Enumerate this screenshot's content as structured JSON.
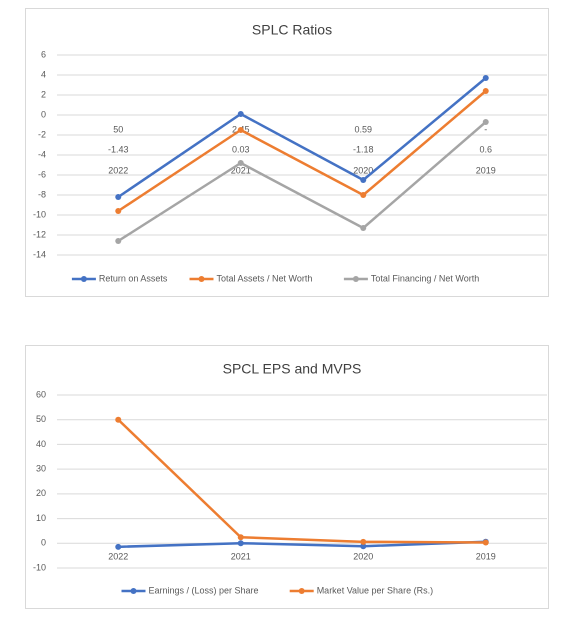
{
  "chart_data": [
    {
      "type": "line",
      "title": "SPLC Ratios",
      "categories": [
        "2022",
        "2021",
        "2020",
        "2019"
      ],
      "category_sublabels": [
        [
          "50",
          "2.45",
          "0.59",
          "-"
        ],
        [
          "-1.43",
          "0.03",
          "-1.18",
          "0.6"
        ]
      ],
      "series": [
        {
          "name": "Return on Assets",
          "color": "#4472c4",
          "values": [
            -8.2,
            0.1,
            -6.5,
            3.7
          ]
        },
        {
          "name": "Total Assets / Net Worth",
          "color": "#ed7d31",
          "values": [
            -9.6,
            -1.5,
            -8,
            2.4
          ]
        },
        {
          "name": "Total Financing / Net Worth",
          "color": "#a5a5a5",
          "values": [
            -12.6,
            -4.8,
            -11.3,
            -0.7
          ]
        }
      ],
      "ylim": [
        -14,
        6
      ],
      "yticks": [
        -14,
        -12,
        -10,
        -8,
        -6,
        -4,
        -2,
        0,
        2,
        4,
        6
      ],
      "grid": true,
      "legend": "bottom"
    },
    {
      "type": "line",
      "title": "SPCL EPS and MVPS",
      "categories": [
        "2022",
        "2021",
        "2020",
        "2019"
      ],
      "series": [
        {
          "name": "Earnings / (Loss) per Share",
          "color": "#4472c4",
          "values": [
            -1.43,
            0.03,
            -1.18,
            0.6
          ]
        },
        {
          "name": "Market Value per Share (Rs.)",
          "color": "#ed7d31",
          "values": [
            50,
            2.45,
            0.59,
            0.3
          ]
        }
      ],
      "ylim": [
        -10,
        60
      ],
      "yticks": [
        -10,
        0,
        10,
        20,
        30,
        40,
        50,
        60
      ],
      "grid": true,
      "legend": "bottom"
    }
  ]
}
